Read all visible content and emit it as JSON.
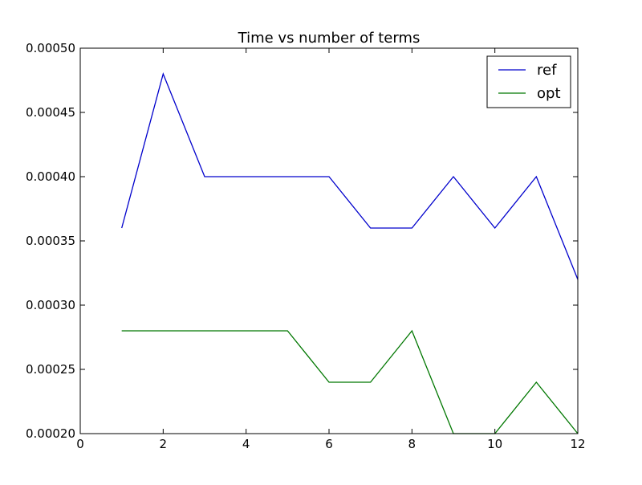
{
  "chart_data": {
    "type": "line",
    "title": "Time vs number of terms",
    "xlabel": "",
    "ylabel": "",
    "xlim": [
      0,
      12
    ],
    "ylim": [
      0.0002,
      0.0005
    ],
    "xticks": [
      0,
      2,
      4,
      6,
      8,
      10,
      12
    ],
    "xtick_labels": [
      "0",
      "2",
      "4",
      "6",
      "8",
      "10",
      "12"
    ],
    "yticks": [
      0.0002,
      0.00025,
      0.0003,
      0.00035,
      0.0004,
      0.00045,
      0.0005
    ],
    "ytick_labels": [
      "0.00020",
      "0.00025",
      "0.00030",
      "0.00035",
      "0.00040",
      "0.00045",
      "0.00050"
    ],
    "grid": false,
    "legend_position": "top-right",
    "x": [
      1,
      2,
      3,
      4,
      5,
      6,
      7,
      8,
      9,
      10,
      11,
      12
    ],
    "series": [
      {
        "name": "ref",
        "color": "#0000cc",
        "values": [
          0.00036,
          0.00048,
          0.0004,
          0.0004,
          0.0004,
          0.0004,
          0.00036,
          0.00036,
          0.0004,
          0.00036,
          0.0004,
          0.00032
        ]
      },
      {
        "name": "opt",
        "color": "#007700",
        "values": [
          0.00028,
          0.00028,
          0.00028,
          0.00028,
          0.00028,
          0.00024,
          0.00024,
          0.00028,
          0.0002,
          0.0002,
          0.00024,
          0.0002
        ]
      }
    ]
  }
}
